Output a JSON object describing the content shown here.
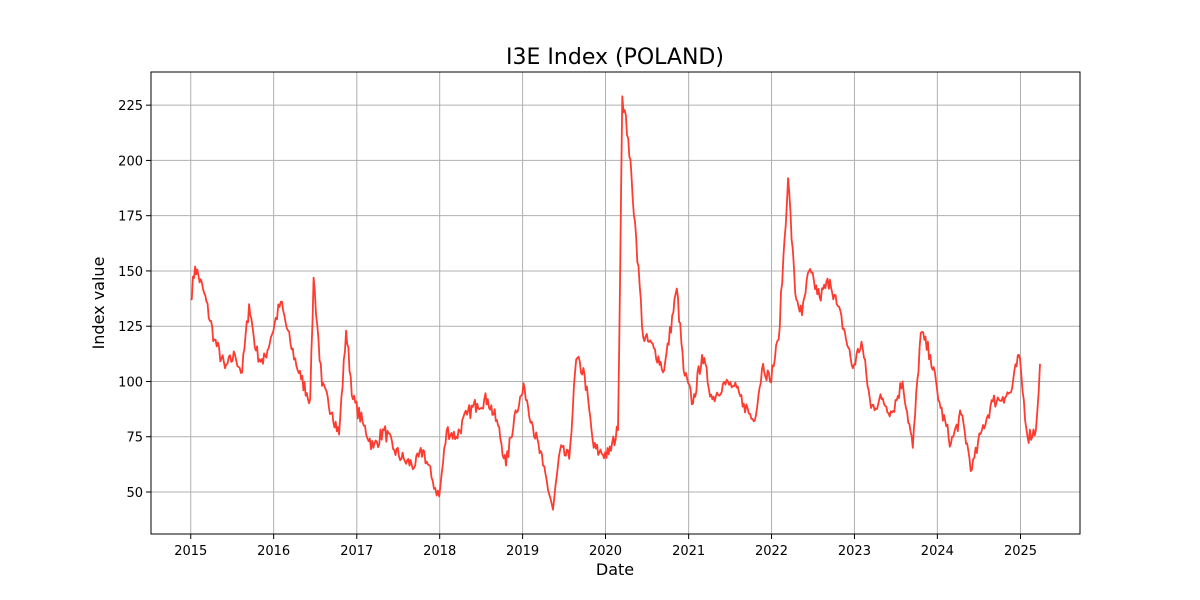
{
  "chart_data": {
    "type": "line",
    "title": "I3E Index (POLAND)",
    "xlabel": "Date",
    "ylabel": "Index value",
    "x_ticks": [
      "2015",
      "2016",
      "2017",
      "2018",
      "2019",
      "2020",
      "2021",
      "2022",
      "2023",
      "2024",
      "2025"
    ],
    "y_ticks": [
      50,
      75,
      100,
      125,
      150,
      175,
      200,
      225
    ],
    "xlim": [
      "2014-07-10",
      "2025-09-20"
    ],
    "ylim": [
      31,
      240
    ],
    "grid": true,
    "line_color": "#ff3b30",
    "series": [
      {
        "x": [
          "2015-01-01",
          "2015-01-20",
          "2015-03-01",
          "2015-04-15",
          "2015-06-01",
          "2015-07-15",
          "2015-08-15",
          "2015-09-15",
          "2015-10-15",
          "2015-11-15",
          "2015-12-20",
          "2016-02-01",
          "2016-03-15",
          "2016-05-01",
          "2016-06-10",
          "2016-06-25",
          "2016-08-01",
          "2016-09-15",
          "2016-10-15",
          "2016-11-15",
          "2016-12-15",
          "2017-02-01",
          "2017-03-15",
          "2017-05-01",
          "2017-06-15",
          "2017-08-01",
          "2017-09-15",
          "2017-10-20",
          "2017-12-01",
          "2017-12-30",
          "2018-02-01",
          "2018-03-15",
          "2018-05-01",
          "2018-06-15",
          "2018-08-01",
          "2018-09-15",
          "2018-10-20",
          "2018-12-01",
          "2019-01-10",
          "2019-02-15",
          "2019-04-01",
          "2019-05-15",
          "2019-06-15",
          "2019-07-25",
          "2019-08-25",
          "2019-10-01",
          "2019-11-10",
          "2019-12-05",
          "2020-01-15",
          "2020-02-25",
          "2020-03-15",
          "2020-04-10",
          "2020-05-15",
          "2020-06-15",
          "2020-08-01",
          "2020-09-15",
          "2020-11-10",
          "2020-12-10",
          "2021-01-20",
          "2021-03-01",
          "2021-04-15",
          "2021-06-01",
          "2021-07-15",
          "2021-09-01",
          "2021-10-15",
          "2021-11-25",
          "2021-12-25",
          "2022-02-01",
          "2022-03-15",
          "2022-04-15",
          "2022-05-15",
          "2022-06-15",
          "2022-08-01",
          "2022-09-15",
          "2022-10-15",
          "2022-11-15",
          "2022-12-25",
          "2023-02-01",
          "2023-03-15",
          "2023-05-01",
          "2023-06-15",
          "2023-08-01",
          "2023-09-15",
          "2023-10-20",
          "2023-12-01",
          "2024-01-15",
          "2024-03-01",
          "2024-04-15",
          "2024-06-01",
          "2024-07-15",
          "2024-09-01",
          "2024-10-15",
          "2024-11-20",
          "2024-12-25",
          "2025-02-01",
          "2025-03-10",
          "2025-03-28"
        ],
        "values": [
          137,
          152,
          140,
          119,
          106,
          112,
          104,
          135,
          114,
          108,
          120,
          136,
          117,
          101,
          92,
          147,
          98,
          86,
          76,
          123,
          92,
          80,
          70,
          78,
          69,
          64,
          62,
          69,
          55,
          48,
          78,
          75,
          85,
          90,
          92,
          80,
          62,
          87,
          97,
          80,
          62,
          42,
          69,
          65,
          110,
          103,
          70,
          68,
          67,
          78,
          229,
          210,
          165,
          120,
          115,
          105,
          142,
          105,
          90,
          112,
          92,
          99,
          98,
          90,
          82,
          108,
          100,
          119,
          192,
          140,
          130,
          150,
          138,
          146,
          135,
          124,
          106,
          118,
          88,
          92,
          86,
          100,
          70,
          122,
          112,
          88,
          72,
          85,
          60,
          78,
          91,
          93,
          95,
          112,
          75,
          78,
          108
        ]
      }
    ]
  }
}
